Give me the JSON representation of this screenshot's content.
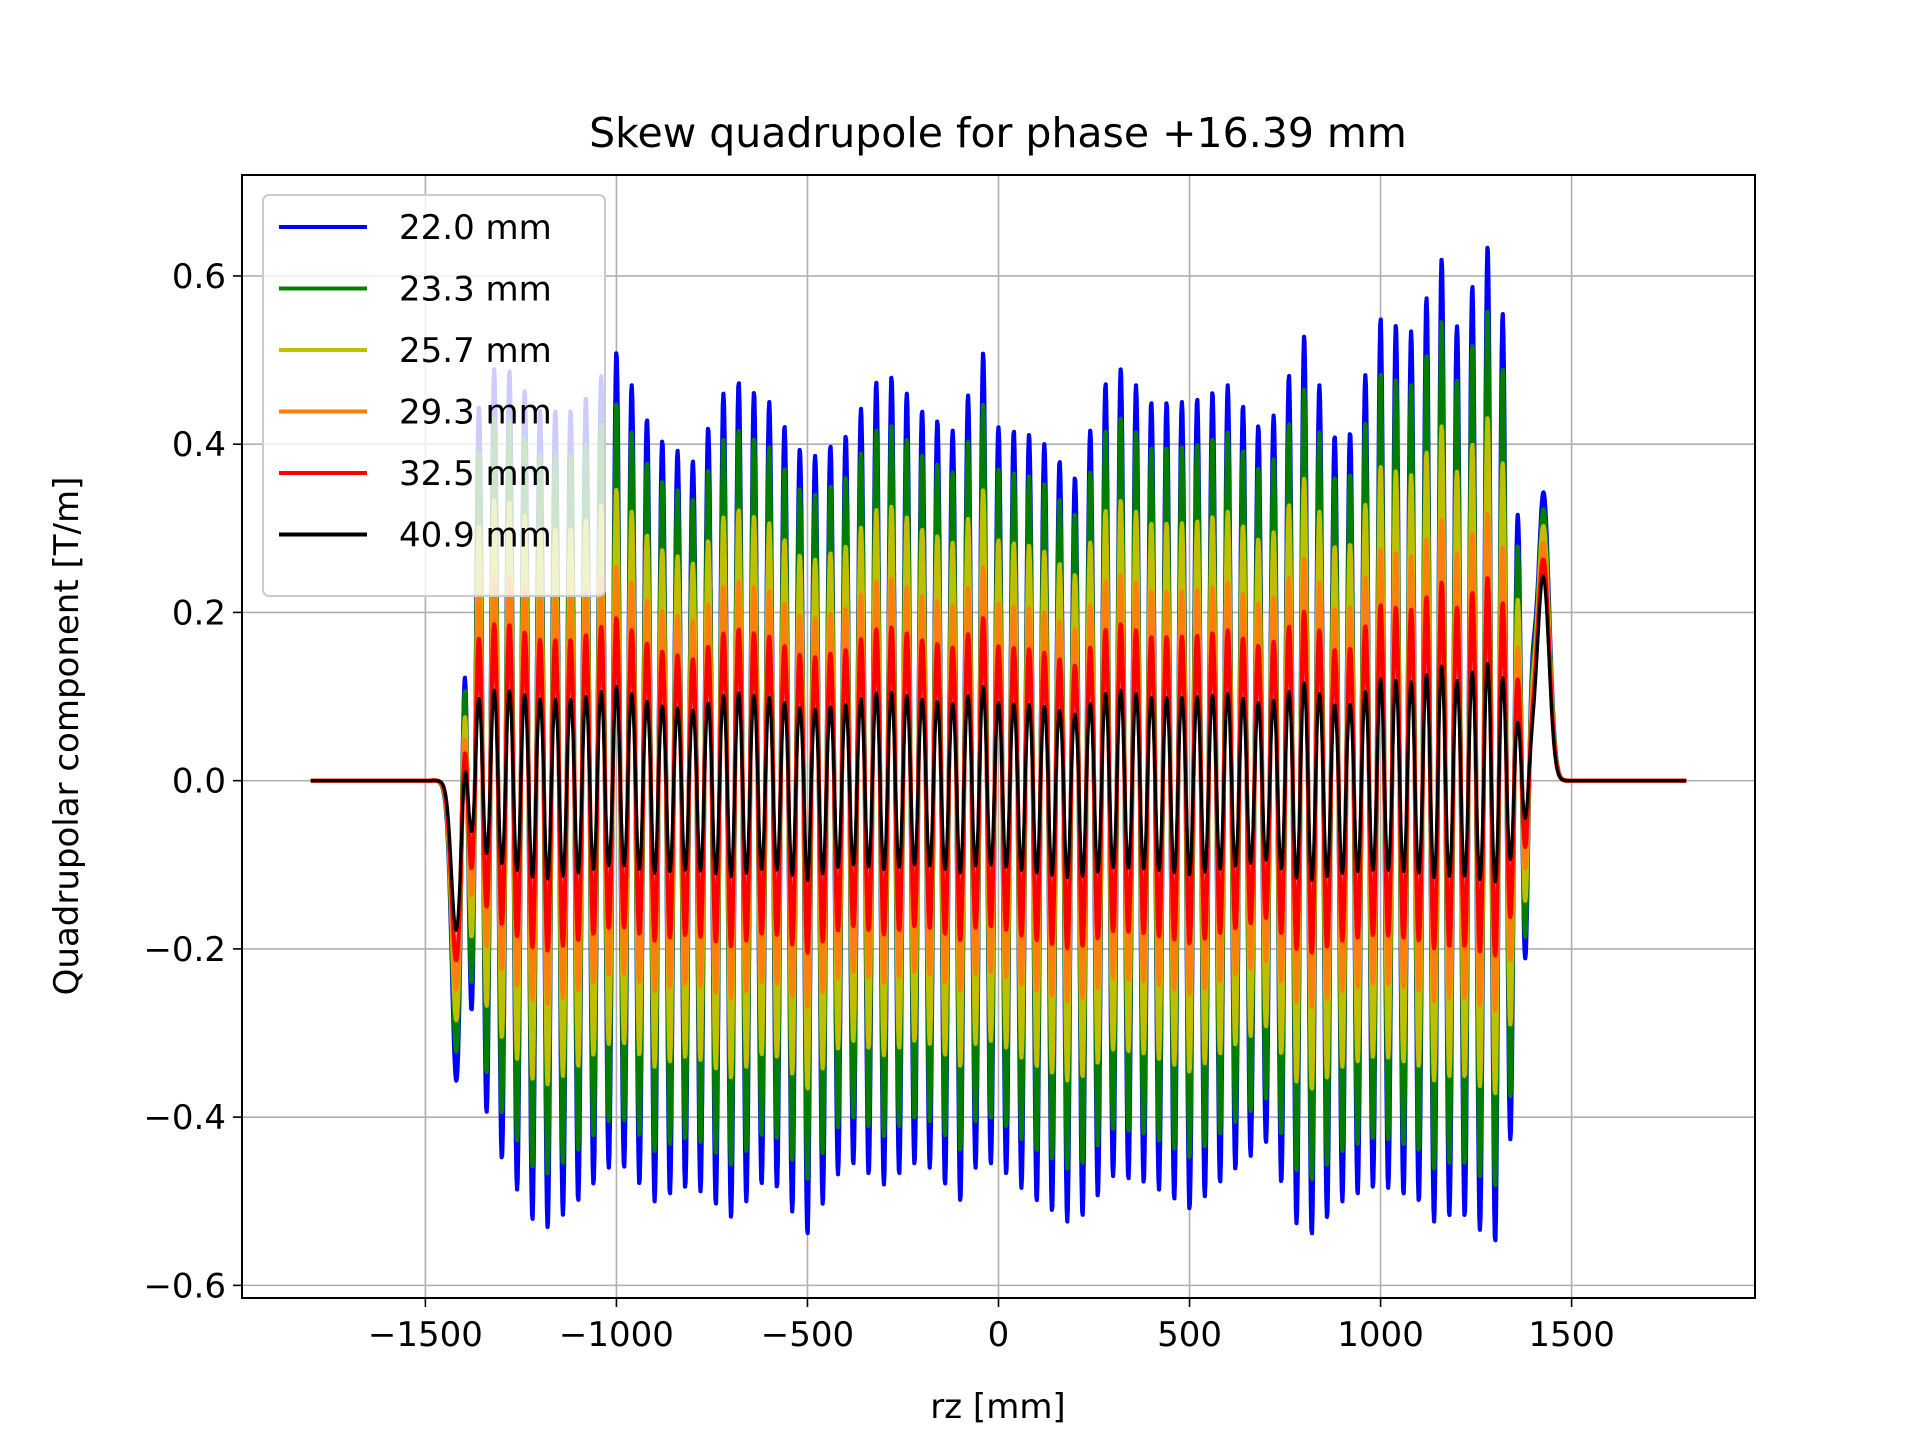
{
  "chart_data": {
    "type": "line",
    "title": "Skew quadrupole for phase +16.39 mm",
    "xlabel": "rz [mm]",
    "ylabel": "Quadrupolar component [T/m]",
    "xlim": [
      -1980,
      1980
    ],
    "ylim": [
      -0.615,
      0.72
    ],
    "xticks": [
      -1500,
      -1000,
      -500,
      0,
      500,
      1000,
      1500
    ],
    "xtick_labels": [
      "−1500",
      "−1000",
      "−500",
      "0",
      "500",
      "1000",
      "1500"
    ],
    "yticks": [
      -0.6,
      -0.4,
      -0.2,
      0.0,
      0.2,
      0.4,
      0.6
    ],
    "ytick_labels": [
      "−0.6",
      "−0.4",
      "−0.2",
      "0.0",
      "0.2",
      "0.4",
      "0.6"
    ],
    "grid": true,
    "legend_position": "top-left",
    "oscillation_period_mm": 40,
    "x_range_mm": [
      -1800,
      1800
    ],
    "series": [
      {
        "name": "22.0 mm",
        "color": "#0000ff",
        "scale": 1.0
      },
      {
        "name": "23.3 mm",
        "color": "#007f00",
        "scale": 0.88
      },
      {
        "name": "25.7 mm",
        "color": "#bfbf00",
        "scale": 0.68
      },
      {
        "name": "29.3 mm",
        "color": "#ff7f0e",
        "scale": 0.5
      },
      {
        "name": "32.5 mm",
        "color": "#ff0000",
        "scale": 0.38
      },
      {
        "name": "40.9 mm",
        "color": "#000000",
        "scale": 0.22
      }
    ],
    "envelope_22mm": {
      "rz": [
        -1400,
        -1300,
        -1200,
        -1100,
        -1000,
        -900,
        -800,
        -700,
        -600,
        -500,
        -400,
        -300,
        -200,
        -100,
        -50,
        0,
        100,
        200,
        300,
        400,
        500,
        600,
        700,
        800,
        900,
        1000,
        1100,
        1150,
        1200,
        1300,
        1370
      ],
      "peak_max": [
        0.45,
        0.5,
        0.44,
        0.44,
        0.51,
        0.41,
        0.38,
        0.48,
        0.45,
        0.38,
        0.41,
        0.49,
        0.44,
        0.41,
        0.53,
        0.42,
        0.41,
        0.36,
        0.5,
        0.45,
        0.45,
        0.47,
        0.41,
        0.53,
        0.38,
        0.55,
        0.53,
        0.64,
        0.54,
        0.66,
        0.3
      ],
      "peak_min": [
        -0.32,
        -0.45,
        -0.54,
        -0.5,
        -0.45,
        -0.5,
        -0.48,
        -0.52,
        -0.47,
        -0.54,
        -0.45,
        -0.48,
        -0.45,
        -0.5,
        -0.45,
        -0.46,
        -0.5,
        -0.53,
        -0.47,
        -0.48,
        -0.51,
        -0.47,
        -0.43,
        -0.55,
        -0.5,
        -0.48,
        -0.5,
        -0.53,
        -0.51,
        -0.55,
        -0.35
      ]
    },
    "edge_features": {
      "entry_dip_rz": -1420,
      "entry_dip_22mm": -0.32,
      "entry_dip_40_9mm": -0.17,
      "exit_bump_rz": 1425,
      "exit_bump_22mm": 0.35,
      "exit_bump_40_9mm": 0.245
    }
  }
}
